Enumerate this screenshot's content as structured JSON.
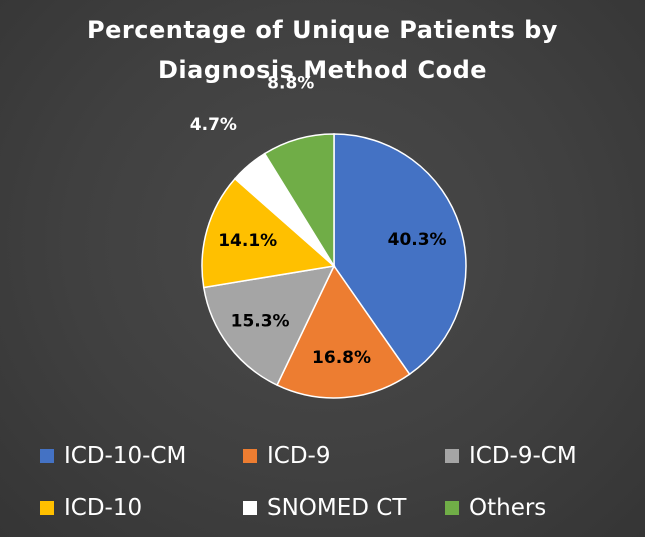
{
  "chart_data": {
    "type": "pie",
    "title_lines": [
      "Percentage of Unique Patients by",
      "Diagnosis Method Code"
    ],
    "slices": [
      {
        "name": "ICD-10-CM",
        "value": 40.3,
        "label": "40.3%",
        "color": "#4472c4",
        "label_color": "#000000"
      },
      {
        "name": "ICD-9",
        "value": 16.8,
        "label": "16.8%",
        "color": "#ed7d31",
        "label_color": "#000000"
      },
      {
        "name": "ICD-9-CM",
        "value": 15.3,
        "label": "15.3%",
        "color": "#a5a5a5",
        "label_color": "#000000"
      },
      {
        "name": "ICD-10",
        "value": 14.1,
        "label": "14.1%",
        "color": "#ffc000",
        "label_color": "#000000"
      },
      {
        "name": "SNOMED CT",
        "value": 4.7,
        "label": "4.7%",
        "color": "#ffffff",
        "label_color": "#ffffff"
      },
      {
        "name": "Others",
        "value": 8.8,
        "label": "8.8%",
        "color": "#70ad47",
        "label_color": "#ffffff"
      }
    ],
    "legend_position": "bottom"
  }
}
